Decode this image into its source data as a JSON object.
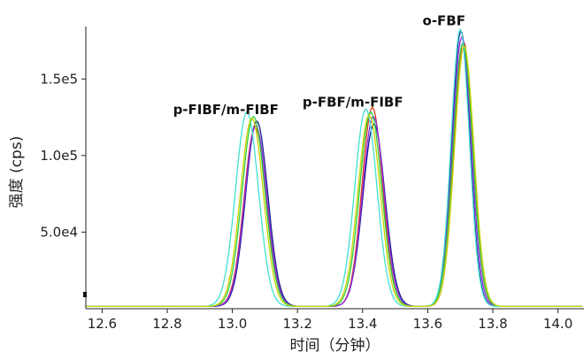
{
  "chart_data": {
    "type": "line",
    "title": "",
    "xlabel": "时间（分钟）",
    "ylabel": "强度 (cps)",
    "xlim": [
      12.55,
      14.08
    ],
    "ylim": [
      0,
      190000
    ],
    "grid": false,
    "legend": "none",
    "x_ticks": [
      12.6,
      12.8,
      13.0,
      13.2,
      13.4,
      13.6,
      13.8,
      14.0
    ],
    "x_tick_labels": [
      "12.6",
      "12.8",
      "13.0",
      "13.2",
      "13.4",
      "13.6",
      "13.8",
      "14.0"
    ],
    "y_ticks": [
      50000,
      100000,
      150000
    ],
    "y_tick_labels": [
      "5.0e4",
      "1.0e5",
      "1.5e5"
    ],
    "annotations": [
      {
        "text": "p-FIBF/m-FIBF",
        "x": 12.98,
        "y": 127000
      },
      {
        "text": "p-FBF/m-FIBF",
        "x": 13.37,
        "y": 132000
      },
      {
        "text": "o-FBF",
        "x": 13.65,
        "y": 185000
      }
    ],
    "baseline": 1500,
    "series": [
      {
        "color": "#1a1a8c",
        "peaks": [
          {
            "center": 13.075,
            "height": 121000,
            "width": 0.034
          },
          {
            "center": 13.435,
            "height": 119000,
            "width": 0.034
          },
          {
            "center": 13.702,
            "height": 180000,
            "width": 0.028
          }
        ]
      },
      {
        "color": "#e03a1e",
        "peaks": [
          {
            "center": 13.07,
            "height": 117000,
            "width": 0.034
          },
          {
            "center": 13.43,
            "height": 130000,
            "width": 0.032
          },
          {
            "center": 13.71,
            "height": 173000,
            "width": 0.029
          }
        ]
      },
      {
        "color": "#8a2be2",
        "peaks": [
          {
            "center": 13.072,
            "height": 118000,
            "width": 0.034
          },
          {
            "center": 13.433,
            "height": 124000,
            "width": 0.033
          },
          {
            "center": 13.705,
            "height": 176000,
            "width": 0.029
          }
        ]
      },
      {
        "color": "#2ecc40",
        "peaks": [
          {
            "center": 13.065,
            "height": 124000,
            "width": 0.035
          },
          {
            "center": 13.425,
            "height": 127000,
            "width": 0.034
          },
          {
            "center": 13.708,
            "height": 172000,
            "width": 0.03
          }
        ]
      },
      {
        "color": "#40e0d0",
        "peaks": [
          {
            "center": 13.045,
            "height": 127000,
            "width": 0.035
          },
          {
            "center": 13.41,
            "height": 129000,
            "width": 0.034
          },
          {
            "center": 13.7,
            "height": 181000,
            "width": 0.028
          }
        ]
      },
      {
        "color": "#c8d400",
        "peaks": [
          {
            "center": 13.06,
            "height": 123000,
            "width": 0.035
          },
          {
            "center": 13.42,
            "height": 125000,
            "width": 0.034
          },
          {
            "center": 13.712,
            "height": 170000,
            "width": 0.03
          }
        ]
      }
    ]
  }
}
